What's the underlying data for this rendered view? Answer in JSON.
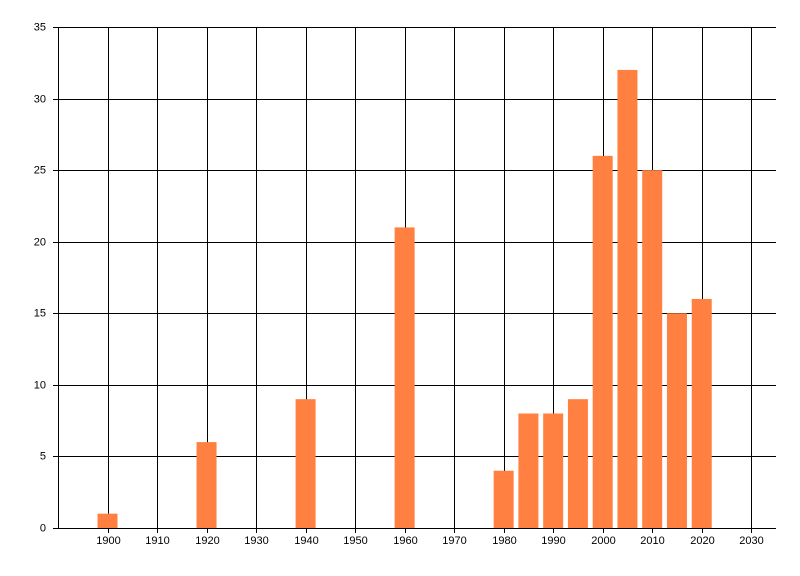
{
  "chart_data": {
    "type": "bar",
    "x": [
      1900,
      1920,
      1940,
      1960,
      1980,
      1985,
      1990,
      1995,
      2000,
      2005,
      2010,
      2015,
      2020
    ],
    "values": [
      1,
      6,
      9,
      21,
      4,
      8,
      8,
      9,
      26,
      32,
      25,
      15,
      16
    ],
    "color": "#ff8040",
    "xlim": [
      1890,
      2035
    ],
    "xticks": [
      1900,
      1910,
      1920,
      1930,
      1940,
      1950,
      1960,
      1970,
      1980,
      1990,
      2000,
      2010,
      2020,
      2030
    ],
    "ylim": [
      0,
      35
    ],
    "yticks": [
      0,
      5,
      10,
      15,
      20,
      25,
      30,
      35
    ],
    "grid": true
  }
}
